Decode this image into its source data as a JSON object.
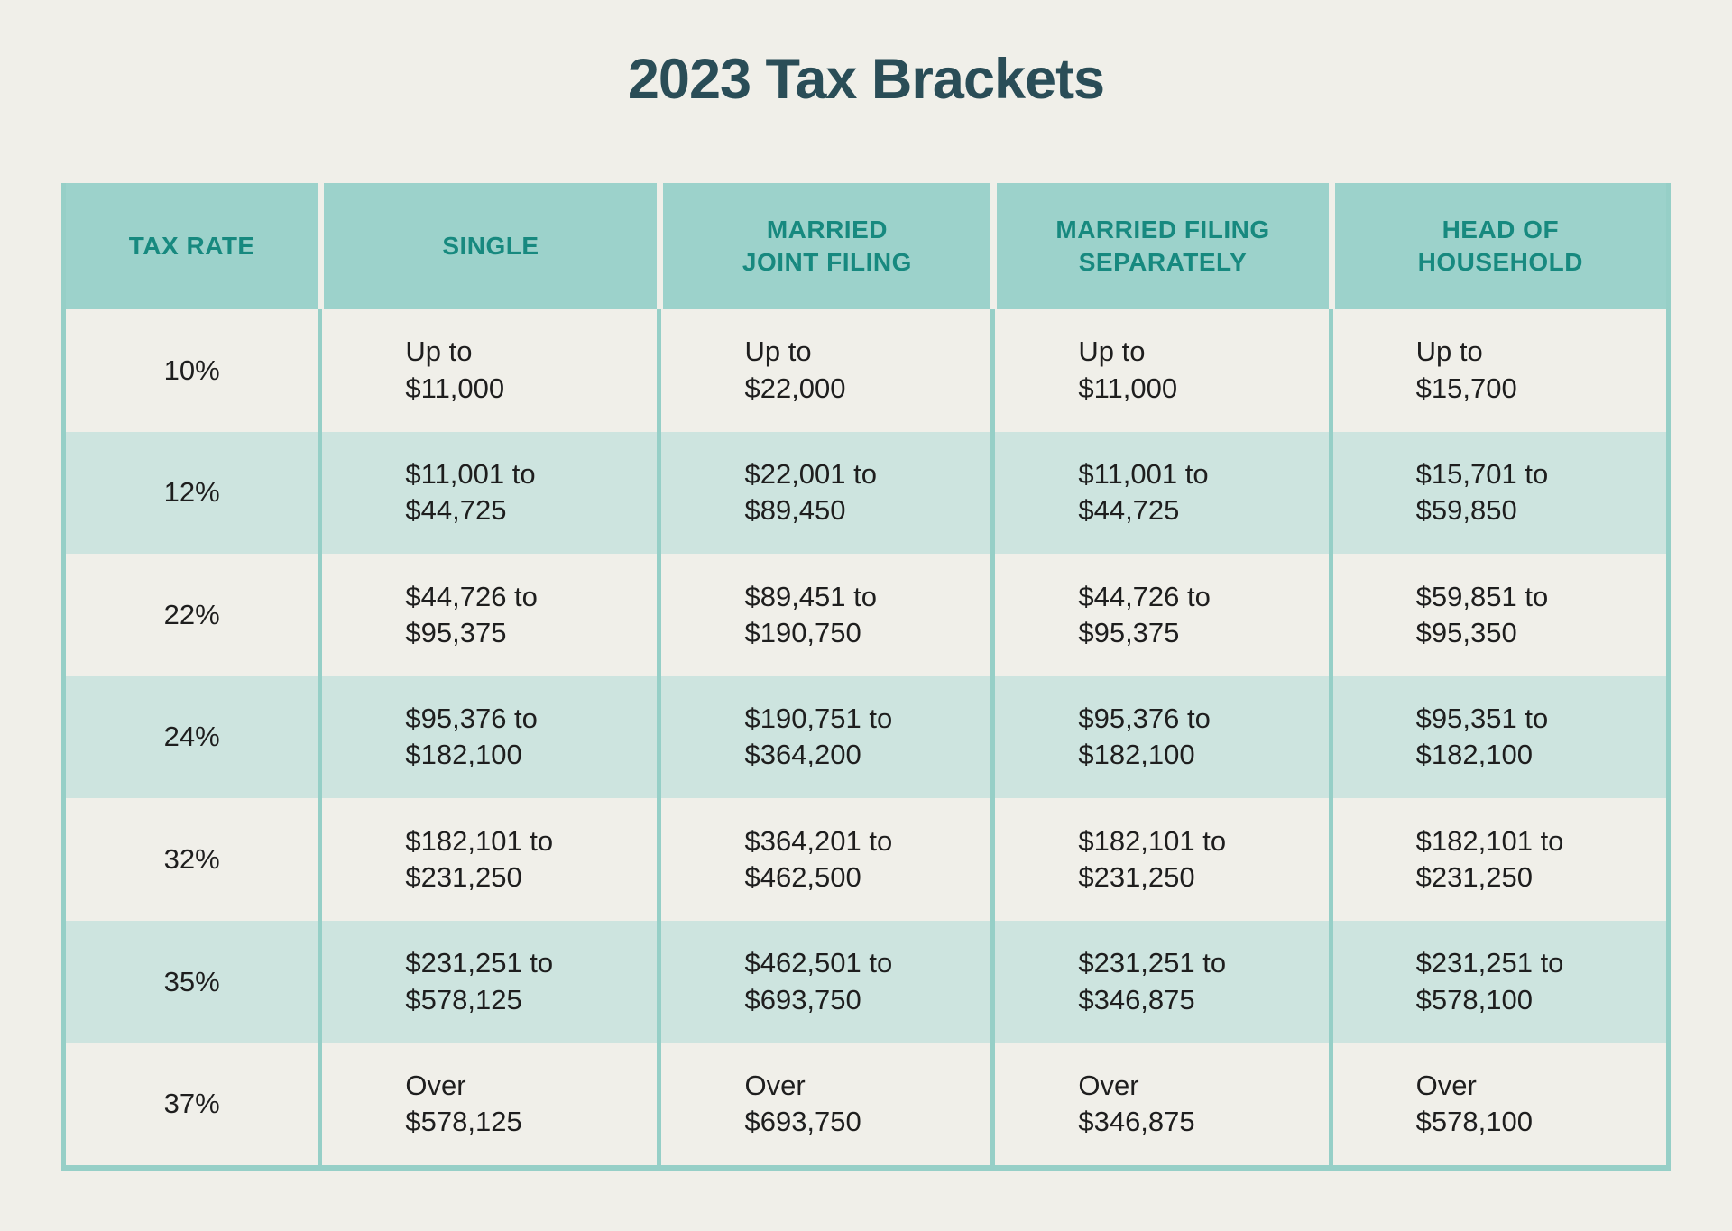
{
  "page": {
    "title": "2023 Tax Brackets"
  },
  "colors": {
    "page_bg": "#F0EFE9",
    "header_bg": "#9CD2CB",
    "header_text": "#17897F",
    "title_text": "#2A4D57",
    "row_teal_bg": "#CDE4DF",
    "border_teal": "#96CFC7",
    "text_dark": "#1E1E1E"
  },
  "table": {
    "headers": [
      [
        "TAX RATE"
      ],
      [
        "SINGLE"
      ],
      [
        "MARRIED",
        "JOINT FILING"
      ],
      [
        "MARRIED FILING",
        "SEPARATELY"
      ],
      [
        "HEAD OF",
        "HOUSEHOLD"
      ]
    ],
    "rows": [
      {
        "rate": "10%",
        "single": [
          "Up to",
          "$11,000"
        ],
        "married_joint": [
          "Up to",
          "$22,000"
        ],
        "married_separate": [
          "Up to",
          "$11,000"
        ],
        "head_household": [
          "Up to",
          "$15,700"
        ]
      },
      {
        "rate": "12%",
        "single": [
          "$11,001 to",
          "$44,725"
        ],
        "married_joint": [
          "$22,001 to",
          "$89,450"
        ],
        "married_separate": [
          "$11,001 to",
          "$44,725"
        ],
        "head_household": [
          "$15,701 to",
          "$59,850"
        ]
      },
      {
        "rate": "22%",
        "single": [
          "$44,726 to",
          "$95,375"
        ],
        "married_joint": [
          "$89,451 to",
          "$190,750"
        ],
        "married_separate": [
          "$44,726 to",
          "$95,375"
        ],
        "head_household": [
          "$59,851 to",
          "$95,350"
        ]
      },
      {
        "rate": "24%",
        "single": [
          "$95,376 to",
          "$182,100"
        ],
        "married_joint": [
          "$190,751 to",
          "$364,200"
        ],
        "married_separate": [
          "$95,376 to",
          "$182,100"
        ],
        "head_household": [
          "$95,351 to",
          "$182,100"
        ]
      },
      {
        "rate": "32%",
        "single": [
          "$182,101 to",
          "$231,250"
        ],
        "married_joint": [
          "$364,201 to",
          "$462,500"
        ],
        "married_separate": [
          "$182,101 to",
          "$231,250"
        ],
        "head_household": [
          "$182,101 to",
          "$231,250"
        ]
      },
      {
        "rate": "35%",
        "single": [
          "$231,251 to",
          "$578,125"
        ],
        "married_joint": [
          "$462,501 to",
          "$693,750"
        ],
        "married_separate": [
          "$231,251 to",
          "$346,875"
        ],
        "head_household": [
          "$231,251 to",
          "$578,100"
        ]
      },
      {
        "rate": "37%",
        "single": [
          "Over",
          "$578,125"
        ],
        "married_joint": [
          "Over",
          "$693,750"
        ],
        "married_separate": [
          "Over",
          "$346,875"
        ],
        "head_household": [
          "Over",
          "$578,100"
        ]
      }
    ]
  },
  "chart_data": {
    "type": "table",
    "title": "2023 Tax Brackets",
    "columns": [
      "Tax Rate",
      "Single",
      "Married Joint Filing",
      "Married Filing Separately",
      "Head of Household"
    ],
    "rows": [
      [
        "10%",
        "Up to $11,000",
        "Up to $22,000",
        "Up to $11,000",
        "Up to $15,700"
      ],
      [
        "12%",
        "$11,001 to $44,725",
        "$22,001 to $89,450",
        "$11,001 to $44,725",
        "$15,701 to $59,850"
      ],
      [
        "22%",
        "$44,726 to $95,375",
        "$89,451 to $190,750",
        "$44,726 to $95,375",
        "$59,851 to $95,350"
      ],
      [
        "24%",
        "$95,376 to $182,100",
        "$190,751 to $364,200",
        "$95,376 to $182,100",
        "$95,351 to $182,100"
      ],
      [
        "32%",
        "$182,101 to $231,250",
        "$364,201 to $462,500",
        "$182,101 to $231,250",
        "$182,101 to $231,250"
      ],
      [
        "35%",
        "$231,251 to $578,125",
        "$462,501 to $693,750",
        "$231,251 to $346,875",
        "$231,251 to $578,100"
      ],
      [
        "37%",
        "Over $578,125",
        "Over $693,750",
        "Over $346,875",
        "Over $578,100"
      ]
    ]
  }
}
